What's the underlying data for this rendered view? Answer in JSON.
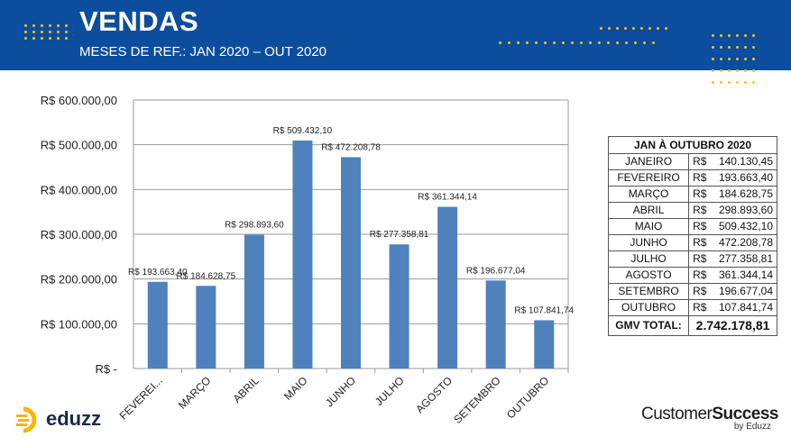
{
  "header": {
    "title": "VENDAS",
    "subtitle": "MESES DE REF.: JAN 2020 – OUT 2020",
    "background": "#0d4d9e",
    "accent": "#f5c518"
  },
  "chart_data": {
    "type": "bar",
    "categories": [
      "FEVEREI...",
      "MARÇO",
      "ABRIL",
      "MAIO",
      "JUNHO",
      "JULHO",
      "AGOSTO",
      "SETEMBRO",
      "OUTUBRO"
    ],
    "values": [
      193663.4,
      184628.75,
      298893.6,
      509432.1,
      472208.78,
      277358.81,
      361344.14,
      196677.04,
      107841.74
    ],
    "data_labels": [
      "R$ 193.663,40",
      "R$ 184.628,75",
      "R$ 298.893,60",
      "R$ 509.432,10",
      "R$ 472.208,78",
      "R$ 277.358,81",
      "R$ 361.344,14",
      "R$ 196.677,04",
      "R$ 107.841,74"
    ],
    "ylim": [
      0,
      600000
    ],
    "yticks": [
      0,
      100000,
      200000,
      300000,
      400000,
      500000,
      600000
    ],
    "ytick_labels": [
      "R$ -",
      "R$ 100.000,00",
      "R$ 200.000,00",
      "R$ 300.000,00",
      "R$ 400.000,00",
      "R$ 500.000,00",
      "R$ 600.000,00"
    ],
    "grid": true,
    "bar_color": "#4f81bd"
  },
  "table": {
    "title": "JAN À OUTUBRO 2020",
    "currency": "R$",
    "rows": [
      {
        "month": "JANEIRO",
        "value": "140.130,45"
      },
      {
        "month": "FEVEREIRO",
        "value": "193.663,40"
      },
      {
        "month": "MARÇO",
        "value": "184.628,75"
      },
      {
        "month": "ABRIL",
        "value": "298.893,60"
      },
      {
        "month": "MAIO",
        "value": "509.432,10"
      },
      {
        "month": "JUNHO",
        "value": "472.208,78"
      },
      {
        "month": "JULHO",
        "value": "277.358,81"
      },
      {
        "month": "AGOSTO",
        "value": "361.344,14"
      },
      {
        "month": "SETEMBRO",
        "value": "196.677,04"
      },
      {
        "month": "OUTUBRO",
        "value": "107.841,74"
      }
    ],
    "total_label": "GMV TOTAL:",
    "total_value": "2.742.178,81"
  },
  "logos": {
    "eduzz": "eduzz",
    "cs_main_1": "Customer",
    "cs_main_2": "Success",
    "cs_by": "by Eduzz"
  }
}
